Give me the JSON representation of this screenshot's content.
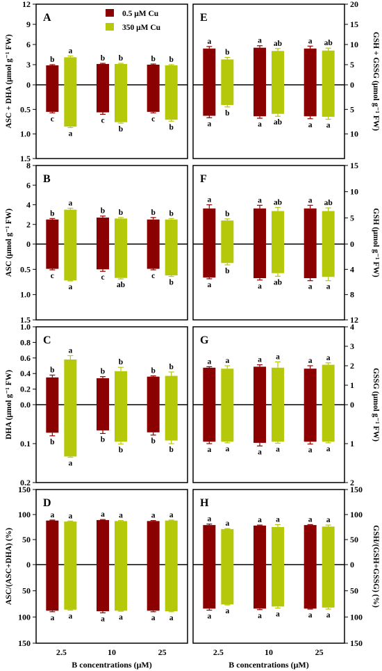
{
  "colors": {
    "cu_low": "#8b0000",
    "cu_high": "#b5c80a",
    "axis": "#000000"
  },
  "legend": [
    {
      "label": "0.5 μM Cu",
      "color": "#8b0000"
    },
    {
      "label": "350 μM Cu",
      "color": "#b5c80a"
    }
  ],
  "xlabel": "B concentrations (μM)",
  "chart_data": [
    {
      "panel": "A",
      "type": "bar",
      "side": "left",
      "ylabel": "ASC + DHA (μmol g⁻¹ FW)",
      "categories": [
        "2.5",
        "10",
        "25"
      ],
      "top": {
        "ylim": [
          0,
          12
        ],
        "ticks": [
          "12",
          "9",
          "6",
          "3",
          "0"
        ],
        "series": [
          {
            "values": [
              2.9,
              3.1,
              3.0
            ],
            "err": [
              0.1,
              0.1,
              0.1
            ],
            "letters": [
              "b",
              "b",
              "b"
            ]
          },
          {
            "values": [
              4.1,
              3.1,
              2.9
            ],
            "err": [
              0.2,
              0.1,
              0.1
            ],
            "letters": [
              "a",
              "b",
              "b"
            ]
          }
        ]
      },
      "bottom": {
        "ylim": [
          0,
          1.5
        ],
        "ticks": [
          "0",
          "0.5",
          "1.0",
          "1.5"
        ],
        "series": [
          {
            "values": [
              0.55,
              0.56,
              0.55
            ],
            "err": [
              0.02,
              0.04,
              0.02
            ],
            "letters": [
              "c",
              "c",
              "c"
            ]
          },
          {
            "values": [
              0.85,
              0.76,
              0.71
            ],
            "err": [
              0.02,
              0.02,
              0.03
            ],
            "letters": [
              "a",
              "b",
              "b"
            ]
          }
        ]
      }
    },
    {
      "panel": "B",
      "type": "bar",
      "side": "left",
      "ylabel": "ASC (μmol g⁻¹ FW)",
      "categories": [
        "2.5",
        "10",
        "25"
      ],
      "top": {
        "ylim": [
          0,
          8
        ],
        "ticks": [
          "8",
          "6",
          "4",
          "2",
          "0"
        ],
        "series": [
          {
            "values": [
              2.5,
              2.7,
              2.5
            ],
            "err": [
              0.1,
              0.15,
              0.2
            ],
            "letters": [
              "b",
              "b",
              "b"
            ]
          },
          {
            "values": [
              3.5,
              2.6,
              2.5
            ],
            "err": [
              0.15,
              0.1,
              0.1
            ],
            "letters": [
              "a",
              "b",
              "b"
            ]
          }
        ]
      },
      "bottom": {
        "ylim": [
          0,
          1.5
        ],
        "ticks": [
          "0",
          "0.5",
          "1.0",
          "1.5"
        ],
        "series": [
          {
            "values": [
              0.49,
              0.5,
              0.49
            ],
            "err": [
              0.02,
              0.04,
              0.02
            ],
            "letters": [
              "c",
              "c",
              "c"
            ]
          },
          {
            "values": [
              0.72,
              0.67,
              0.62
            ],
            "err": [
              0.01,
              0.02,
              0.02
            ],
            "letters": [
              "a",
              "ab",
              "b"
            ]
          }
        ]
      }
    },
    {
      "panel": "C",
      "type": "bar",
      "side": "left",
      "ylabel": "DHA (μmol g⁻¹ FW)",
      "categories": [
        "2.5",
        "10",
        "25"
      ],
      "top": {
        "ylim": [
          0,
          1.0
        ],
        "ticks": [
          "1.0",
          "0.8",
          "0.6",
          "0.4",
          "0.2",
          "0.0"
        ],
        "series": [
          {
            "values": [
              0.35,
              0.34,
              0.36
            ],
            "err": [
              0.03,
              0.02,
              0.01
            ],
            "letters": [
              "b",
              "b",
              "b"
            ]
          },
          {
            "values": [
              0.58,
              0.43,
              0.37
            ],
            "err": [
              0.05,
              0.05,
              0.05
            ],
            "letters": [
              "a",
              "b",
              "b"
            ]
          }
        ]
      },
      "bottom": {
        "ylim": [
          0,
          0.2
        ],
        "ticks": [
          "0.0",
          "0.1",
          "0.2"
        ],
        "series": [
          {
            "values": [
              0.072,
              0.066,
              0.071
            ],
            "err": [
              0.008,
              0.008,
              0.007
            ],
            "letters": [
              "b",
              "b",
              "b"
            ]
          },
          {
            "values": [
              0.133,
              0.095,
              0.092
            ],
            "err": [
              0.002,
              0.006,
              0.008
            ],
            "letters": [
              "a",
              "b",
              "b"
            ]
          }
        ]
      }
    },
    {
      "panel": "D",
      "type": "bar",
      "side": "left",
      "ylabel": "ASC/(ASC+DHA) (%)",
      "categories": [
        "2.5",
        "10",
        "25"
      ],
      "top": {
        "ylim": [
          0,
          150
        ],
        "ticks": [
          "150",
          "100",
          "50",
          "0"
        ],
        "series": [
          {
            "values": [
              88,
              89,
              87
            ],
            "err": [
              1,
              1,
              1
            ],
            "letters": [
              "a",
              "a",
              "a"
            ]
          },
          {
            "values": [
              86,
              87,
              88
            ],
            "err": [
              1,
              1,
              1
            ],
            "letters": [
              "a",
              "a",
              "a"
            ]
          }
        ]
      },
      "bottom": {
        "ylim": [
          0,
          150
        ],
        "ticks": [
          "0",
          "50",
          "100",
          "150"
        ],
        "series": [
          {
            "values": [
              88,
              89,
              88
            ],
            "err": [
              2,
              3,
              2
            ],
            "letters": [
              "a",
              "a",
              "a"
            ]
          },
          {
            "values": [
              86,
              88,
              89
            ],
            "err": [
              1,
              1,
              1
            ],
            "letters": [
              "a",
              "a",
              "a"
            ]
          }
        ]
      }
    },
    {
      "panel": "E",
      "type": "bar",
      "side": "right",
      "ylabel": "GSH + GSSG (μmol g⁻¹ FW)",
      "categories": [
        "2.5",
        "10",
        "25"
      ],
      "top": {
        "ylim": [
          0,
          20
        ],
        "ticks": [
          "20",
          "15",
          "10",
          "5",
          "0"
        ],
        "series": [
          {
            "values": [
              9.0,
              9.2,
              9.0
            ],
            "err": [
              0.5,
              0.5,
              0.6
            ],
            "letters": [
              "a",
              "a",
              "a"
            ]
          },
          {
            "values": [
              6.3,
              8.4,
              8.5
            ],
            "err": [
              0.5,
              0.6,
              0.6
            ],
            "letters": [
              "b",
              "ab",
              "ab"
            ]
          }
        ]
      },
      "bottom": {
        "ylim": [
          0,
          15
        ],
        "ticks": [
          "0",
          "5",
          "10"
        ],
        "series": [
          {
            "values": [
              6.3,
              6.4,
              6.4
            ],
            "err": [
              0.4,
              0.4,
              0.5
            ],
            "letters": [
              "a",
              "a",
              "a"
            ]
          },
          {
            "values": [
              4.1,
              5.9,
              6.5
            ],
            "err": [
              0.4,
              0.5,
              0.5
            ],
            "letters": [
              "b",
              "ab",
              "a"
            ]
          }
        ]
      }
    },
    {
      "panel": "F",
      "type": "bar",
      "side": "right",
      "ylabel": "GSH (μmol g⁻¹ FW)",
      "categories": [
        "2.5",
        "10",
        "25"
      ],
      "top": {
        "ylim": [
          0,
          15
        ],
        "ticks": [
          "15",
          "10",
          "5",
          "0"
        ],
        "series": [
          {
            "values": [
              6.8,
              6.8,
              6.8
            ],
            "err": [
              0.7,
              0.6,
              0.6
            ],
            "letters": [
              "a",
              "a",
              "a"
            ]
          },
          {
            "values": [
              4.5,
              6.3,
              6.3
            ],
            "err": [
              0.3,
              0.7,
              0.6
            ],
            "letters": [
              "b",
              "ab",
              "ab"
            ]
          }
        ]
      },
      "bottom": {
        "ylim": [
          0,
          12
        ],
        "ticks": [
          "0",
          "4",
          "8",
          "12"
        ],
        "series": [
          {
            "values": [
              5.3,
              5.4,
              5.4
            ],
            "err": [
              0.2,
              0.3,
              0.4
            ],
            "letters": [
              "a",
              "a",
              "a"
            ]
          },
          {
            "values": [
              3.0,
              4.6,
              5.2
            ],
            "err": [
              0.3,
              0.5,
              0.6
            ],
            "letters": [
              "b",
              "ab",
              "a"
            ]
          }
        ]
      }
    },
    {
      "panel": "G",
      "type": "bar",
      "side": "right",
      "ylabel": "GSSG (μmol g⁻¹ FW)",
      "categories": [
        "2.5",
        "10",
        "25"
      ],
      "top": {
        "ylim": [
          0,
          4
        ],
        "ticks": [
          "4",
          "3",
          "2",
          "1",
          "0"
        ],
        "series": [
          {
            "values": [
              1.9,
              1.95,
              1.85
            ],
            "err": [
              0.05,
              0.1,
              0.15
            ],
            "letters": [
              "a",
              "a",
              "a"
            ]
          },
          {
            "values": [
              1.85,
              1.9,
              2.05
            ],
            "err": [
              0.15,
              0.3,
              0.1
            ],
            "letters": [
              "a",
              "a",
              "a"
            ]
          }
        ]
      },
      "bottom": {
        "ylim": [
          0,
          2
        ],
        "ticks": [
          "0",
          "1",
          "2"
        ],
        "series": [
          {
            "values": [
              0.95,
              0.98,
              0.95
            ],
            "err": [
              0.05,
              0.08,
              0.06
            ],
            "letters": [
              "a",
              "a",
              "a"
            ]
          },
          {
            "values": [
              0.95,
              0.95,
              0.95
            ],
            "err": [
              0.03,
              0.04,
              0.03
            ],
            "letters": [
              "a",
              "a",
              "a"
            ]
          }
        ]
      }
    },
    {
      "panel": "H",
      "type": "bar",
      "side": "right",
      "ylabel": "GSH/(GSH+GSSG) (%)",
      "categories": [
        "2.5",
        "10",
        "25"
      ],
      "top": {
        "ylim": [
          0,
          150
        ],
        "ticks": [
          "150",
          "100",
          "50",
          "0"
        ],
        "series": [
          {
            "values": [
              79,
              78,
              79
            ],
            "err": [
              2,
              1,
              1
            ],
            "letters": [
              "a",
              "a",
              "a"
            ]
          },
          {
            "values": [
              71,
              75,
              76
            ],
            "err": [
              1,
              5,
              3
            ],
            "letters": [
              "a",
              "a",
              "a"
            ]
          }
        ]
      },
      "bottom": {
        "ylim": [
          0,
          150
        ],
        "ticks": [
          "0",
          "50",
          "100",
          "150"
        ],
        "series": [
          {
            "values": [
              84,
              84,
              84
            ],
            "err": [
              3,
              2,
              1
            ],
            "letters": [
              "a",
              "a",
              "a"
            ]
          },
          {
            "values": [
              76,
              80,
              82
            ],
            "err": [
              1,
              3,
              3
            ],
            "letters": [
              "a",
              "a",
              "a"
            ]
          }
        ]
      }
    }
  ]
}
